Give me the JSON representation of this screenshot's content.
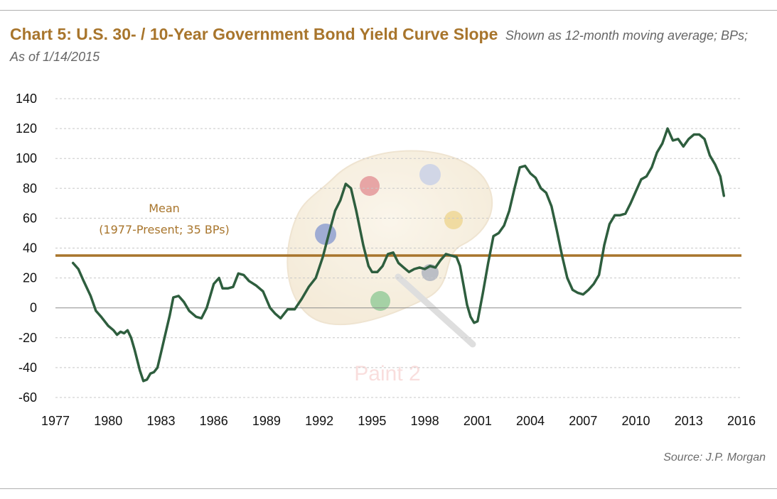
{
  "chart_data": {
    "type": "line",
    "title": "Chart 5: U.S. 30- / 10-Year Government Bond Yield Curve Slope",
    "subtitle": "Shown as 12-month moving average; BPs; As of 1/14/2015",
    "source": "Source: J.P. Morgan",
    "xlabel": "",
    "ylabel": "",
    "xlim": [
      1977,
      2016
    ],
    "ylim": [
      -60,
      140
    ],
    "x_ticks": [
      "1977",
      "1980",
      "1983",
      "1986",
      "1989",
      "1992",
      "1995",
      "1998",
      "2001",
      "2004",
      "2007",
      "2010",
      "2013",
      "2016"
    ],
    "y_ticks": [
      "140",
      "120",
      "100",
      "80",
      "60",
      "40",
      "20",
      "0",
      "-20",
      "-40",
      "-60"
    ],
    "grid": true,
    "mean": {
      "value": 35,
      "label_line1": "Mean",
      "label_line2": "(1977-Present; 35 BPs)",
      "color": "#a8752c"
    },
    "series": [
      {
        "color": "#2e5e3e",
        "x": [
          1978.0,
          1978.3,
          1978.6,
          1979.0,
          1979.3,
          1979.6,
          1980.0,
          1980.3,
          1980.5,
          1980.7,
          1980.9,
          1981.1,
          1981.3,
          1981.5,
          1981.8,
          1982.0,
          1982.2,
          1982.4,
          1982.6,
          1982.8,
          1983.0,
          1983.2,
          1983.5,
          1983.7,
          1984.0,
          1984.3,
          1984.6,
          1985.0,
          1985.3,
          1985.6,
          1986.0,
          1986.3,
          1986.5,
          1986.8,
          1987.1,
          1987.4,
          1987.7,
          1988.0,
          1988.4,
          1988.8,
          1989.2,
          1989.5,
          1989.8,
          1990.2,
          1990.6,
          1991.0,
          1991.4,
          1991.8,
          1992.2,
          1992.6,
          1992.9,
          1993.2,
          1993.5,
          1993.8,
          1994.1,
          1994.5,
          1994.8,
          1995.0,
          1995.3,
          1995.6,
          1995.9,
          1996.2,
          1996.5,
          1996.8,
          1997.1,
          1997.4,
          1997.7,
          1998.0,
          1998.3,
          1998.6,
          1998.9,
          1999.2,
          1999.5,
          1999.8,
          2000.0,
          2000.2,
          2000.4,
          2000.6,
          2000.8,
          2001.0,
          2001.3,
          2001.6,
          2001.9,
          2002.2,
          2002.5,
          2002.8,
          2003.1,
          2003.4,
          2003.7,
          2004.0,
          2004.3,
          2004.6,
          2004.9,
          2005.2,
          2005.5,
          2005.8,
          2006.1,
          2006.4,
          2006.7,
          2007.0,
          2007.3,
          2007.6,
          2007.9,
          2008.2,
          2008.5,
          2008.8,
          2009.1,
          2009.4,
          2009.7,
          2010.0,
          2010.3,
          2010.6,
          2010.9,
          2011.2,
          2011.5,
          2011.8,
          2012.1,
          2012.4,
          2012.7,
          2013.0,
          2013.3,
          2013.6,
          2013.9,
          2014.2,
          2014.5,
          2014.8,
          2015.0
        ],
        "y": [
          30,
          26,
          18,
          8,
          -2,
          -6,
          -12,
          -15,
          -18,
          -16,
          -17,
          -15,
          -20,
          -28,
          -42,
          -49,
          -48,
          -44,
          -43,
          -40,
          -30,
          -20,
          -5,
          7,
          8,
          4,
          -2,
          -6,
          -7,
          0,
          16,
          20,
          13,
          13,
          14,
          23,
          22,
          18,
          15,
          11,
          0,
          -4,
          -7,
          -1,
          -1,
          6,
          14,
          20,
          34,
          52,
          65,
          72,
          83,
          80,
          65,
          42,
          28,
          24,
          24,
          28,
          36,
          37,
          30,
          27,
          24,
          26,
          27,
          26,
          28,
          27,
          32,
          36,
          35,
          34,
          28,
          15,
          2,
          -6,
          -10,
          -9,
          10,
          30,
          48,
          50,
          55,
          65,
          80,
          94,
          95,
          90,
          87,
          80,
          77,
          68,
          52,
          35,
          20,
          12,
          10,
          9,
          12,
          16,
          22,
          42,
          56,
          62,
          62,
          63,
          70,
          78,
          86,
          88,
          94,
          104,
          110,
          120,
          112,
          113,
          108,
          113,
          116,
          116,
          113,
          102,
          96,
          88,
          75
        ]
      }
    ]
  },
  "watermark": {
    "text": "Paint 2",
    "icon": "paint-palette-icon"
  }
}
